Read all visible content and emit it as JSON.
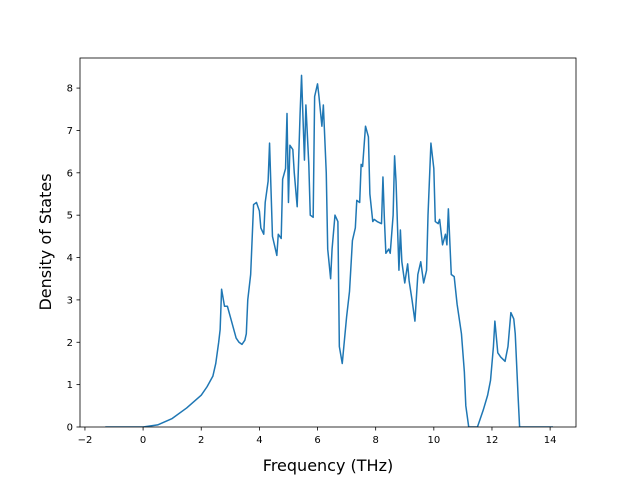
{
  "chart_data": {
    "type": "line",
    "xlabel": "Frequency (THz)",
    "ylabel": "Density of States",
    "xlim": [
      -2.17,
      14.89
    ],
    "ylim": [
      0,
      8.71
    ],
    "xticks": [
      {
        "value": -2,
        "label": "−2"
      },
      0,
      2,
      4,
      6,
      8,
      10,
      12,
      14
    ],
    "yticks": [
      0,
      1,
      2,
      3,
      4,
      5,
      6,
      7,
      8
    ],
    "series": [
      {
        "color": "#1f77b4",
        "x": [
          -1.3,
          0,
          0.5,
          1.0,
          1.5,
          2.0,
          2.2,
          2.4,
          2.5,
          2.6,
          2.65,
          2.7,
          2.8,
          2.9,
          3.0,
          3.1,
          3.2,
          3.3,
          3.4,
          3.5,
          3.55,
          3.6,
          3.7,
          3.8,
          3.9,
          4.0,
          4.05,
          4.15,
          4.2,
          4.3,
          4.35,
          4.45,
          4.5,
          4.6,
          4.65,
          4.75,
          4.8,
          4.9,
          4.95,
          5.0,
          5.05,
          5.15,
          5.2,
          5.3,
          5.4,
          5.45,
          5.55,
          5.6,
          5.7,
          5.75,
          5.85,
          5.9,
          6.0,
          6.05,
          6.15,
          6.2,
          6.3,
          6.35,
          6.45,
          6.5,
          6.6,
          6.7,
          6.75,
          6.85,
          7.0,
          7.1,
          7.2,
          7.3,
          7.35,
          7.45,
          7.5,
          7.55,
          7.65,
          7.75,
          7.8,
          7.9,
          7.95,
          8.05,
          8.2,
          8.25,
          8.3,
          8.35,
          8.45,
          8.5,
          8.6,
          8.65,
          8.7,
          8.8,
          8.85,
          8.9,
          9.0,
          9.1,
          9.15,
          9.25,
          9.35,
          9.45,
          9.55,
          9.65,
          9.75,
          9.8,
          9.9,
          10.0,
          10.05,
          10.15,
          10.2,
          10.3,
          10.4,
          10.45,
          10.5,
          10.6,
          10.7,
          10.8,
          10.95,
          11.05,
          11.1,
          11.2,
          11.5,
          11.7,
          11.85,
          11.95,
          12.05,
          12.1,
          12.2,
          12.3,
          12.45,
          12.55,
          12.65,
          12.75,
          12.8,
          12.9,
          12.95,
          14.1
        ],
        "values": [
          0,
          0,
          0.05,
          0.2,
          0.45,
          0.75,
          0.95,
          1.2,
          1.5,
          2.0,
          2.3,
          3.25,
          2.85,
          2.85,
          2.6,
          2.35,
          2.1,
          2.0,
          1.95,
          2.05,
          2.2,
          3.0,
          3.6,
          5.25,
          5.3,
          5.1,
          4.7,
          4.55,
          5.3,
          5.8,
          6.7,
          4.5,
          4.35,
          4.05,
          4.55,
          4.45,
          5.85,
          6.1,
          7.4,
          5.3,
          6.65,
          6.55,
          6.0,
          5.2,
          7.4,
          8.3,
          6.3,
          7.6,
          6.2,
          5.0,
          4.95,
          7.8,
          8.1,
          7.8,
          7.1,
          7.6,
          6.0,
          4.2,
          3.5,
          4.2,
          5.0,
          4.85,
          1.9,
          1.5,
          2.6,
          3.2,
          4.4,
          4.7,
          5.35,
          5.3,
          6.2,
          6.15,
          7.1,
          6.85,
          5.5,
          4.85,
          4.9,
          4.85,
          4.8,
          5.9,
          4.9,
          4.1,
          4.2,
          4.1,
          5.0,
          6.4,
          5.8,
          3.7,
          4.65,
          3.9,
          3.4,
          3.85,
          3.45,
          3.0,
          2.5,
          3.6,
          3.9,
          3.4,
          3.7,
          5.0,
          6.7,
          6.1,
          4.85,
          4.8,
          4.9,
          4.3,
          4.55,
          4.3,
          5.15,
          3.6,
          3.55,
          2.9,
          2.2,
          1.3,
          0.5,
          0,
          0,
          0.4,
          0.75,
          1.1,
          1.9,
          2.5,
          1.75,
          1.65,
          1.55,
          1.9,
          2.7,
          2.55,
          2.2,
          0.7,
          0,
          0
        ]
      }
    ]
  }
}
